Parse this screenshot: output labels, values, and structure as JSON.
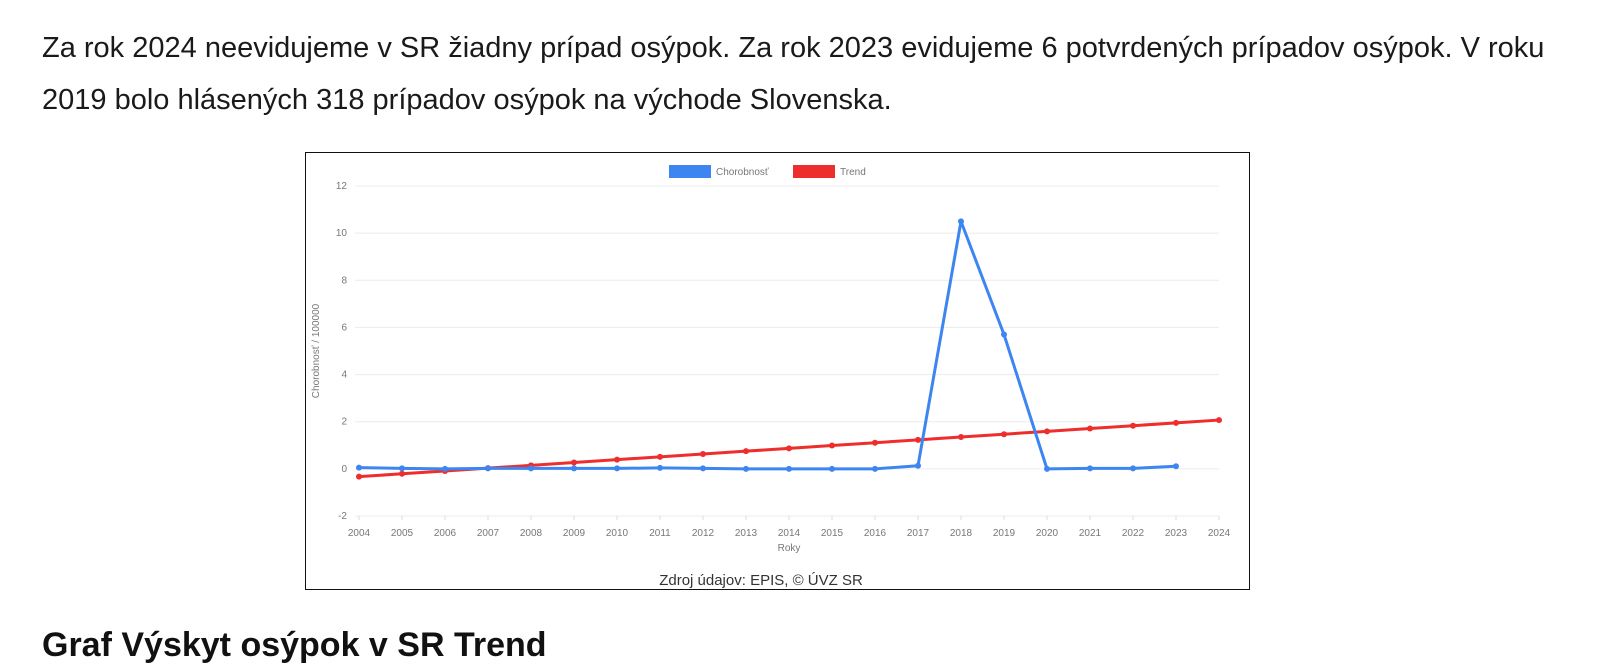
{
  "intro_text": "Za rok 2024 neevidujeme v SR žiadny prípad osýpok. Za rok 2023 evidujeme 6 potvrdených prípadov osýpok. V roku 2019 bolo hlásených 318 prípadov osýpok na východe Slovenska.",
  "chart_data": {
    "type": "line",
    "title": "",
    "xlabel": "Roky",
    "ylabel": "Chorobnosť / 100000",
    "ylim": [
      -2,
      12
    ],
    "yticks": [
      -2,
      0,
      2,
      4,
      6,
      8,
      10,
      12
    ],
    "grid": true,
    "legend_placement": "top",
    "categories": [
      "2004",
      "2005",
      "2006",
      "2007",
      "2008",
      "2009",
      "2010",
      "2011",
      "2012",
      "2013",
      "2014",
      "2015",
      "2016",
      "2017",
      "2018",
      "2019",
      "2020",
      "2021",
      "2022",
      "2023",
      "2024"
    ],
    "series": [
      {
        "name": "Chorobnosť",
        "color": "#3d85f0",
        "values": [
          0.05,
          0.02,
          0.0,
          0.02,
          0.02,
          0.02,
          0.02,
          0.04,
          0.02,
          0.0,
          0.0,
          0.0,
          0.0,
          0.13,
          10.5,
          5.7,
          0.0,
          0.02,
          0.02,
          0.11,
          null
        ]
      },
      {
        "name": "Trend",
        "color": "#ee2d2d",
        "values": [
          -0.33,
          -0.21,
          -0.09,
          0.03,
          0.15,
          0.27,
          0.39,
          0.51,
          0.63,
          0.75,
          0.87,
          0.99,
          1.11,
          1.23,
          1.35,
          1.47,
          1.59,
          1.71,
          1.83,
          1.95,
          2.07
        ]
      }
    ],
    "source": "Zdroj údajov: EPIS, © ÚVZ SR"
  },
  "next_heading": "Graf Výskyt osýpok v SR Trend"
}
